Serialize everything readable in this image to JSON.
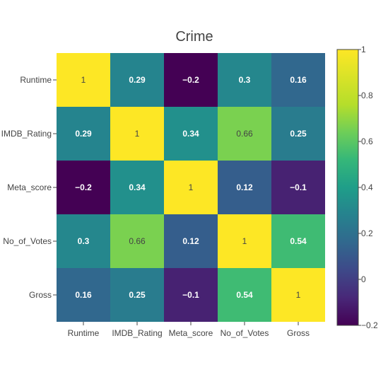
{
  "chart_data": {
    "type": "heatmap",
    "title": "Crime",
    "xlabel": "",
    "ylabel": "",
    "x_categories": [
      "Runtime",
      "IMDB_Rating",
      "Meta_score",
      "No_of_Votes",
      "Gross"
    ],
    "y_categories": [
      "Runtime",
      "IMDB_Rating",
      "Meta_score",
      "No_of_Votes",
      "Gross"
    ],
    "values": [
      [
        1,
        0.29,
        -0.2,
        0.3,
        0.16
      ],
      [
        0.29,
        1,
        0.34,
        0.66,
        0.25
      ],
      [
        -0.2,
        0.34,
        1,
        0.12,
        -0.1
      ],
      [
        0.3,
        0.66,
        0.12,
        1,
        0.54
      ],
      [
        0.16,
        0.25,
        -0.1,
        0.54,
        1
      ]
    ],
    "cell_labels": [
      [
        "1",
        "0.29",
        "−0.2",
        "0.3",
        "0.16"
      ],
      [
        "0.29",
        "1",
        "0.34",
        "0.66",
        "0.25"
      ],
      [
        "−0.2",
        "0.34",
        "1",
        "0.12",
        "−0.1"
      ],
      [
        "0.3",
        "0.66",
        "0.12",
        "1",
        "0.54"
      ],
      [
        "0.16",
        "0.25",
        "−0.1",
        "0.54",
        "1"
      ]
    ],
    "colorscale": "viridis",
    "zlim": [
      -0.2,
      1
    ],
    "colorbar_ticks": [
      1,
      0.8,
      0.6,
      0.4,
      0.2,
      0,
      -0.2
    ],
    "colorbar_tick_labels": [
      "1",
      "0.8",
      "0.6",
      "0.4",
      "0.2",
      "0",
      "−0.2"
    ],
    "grid": false
  }
}
